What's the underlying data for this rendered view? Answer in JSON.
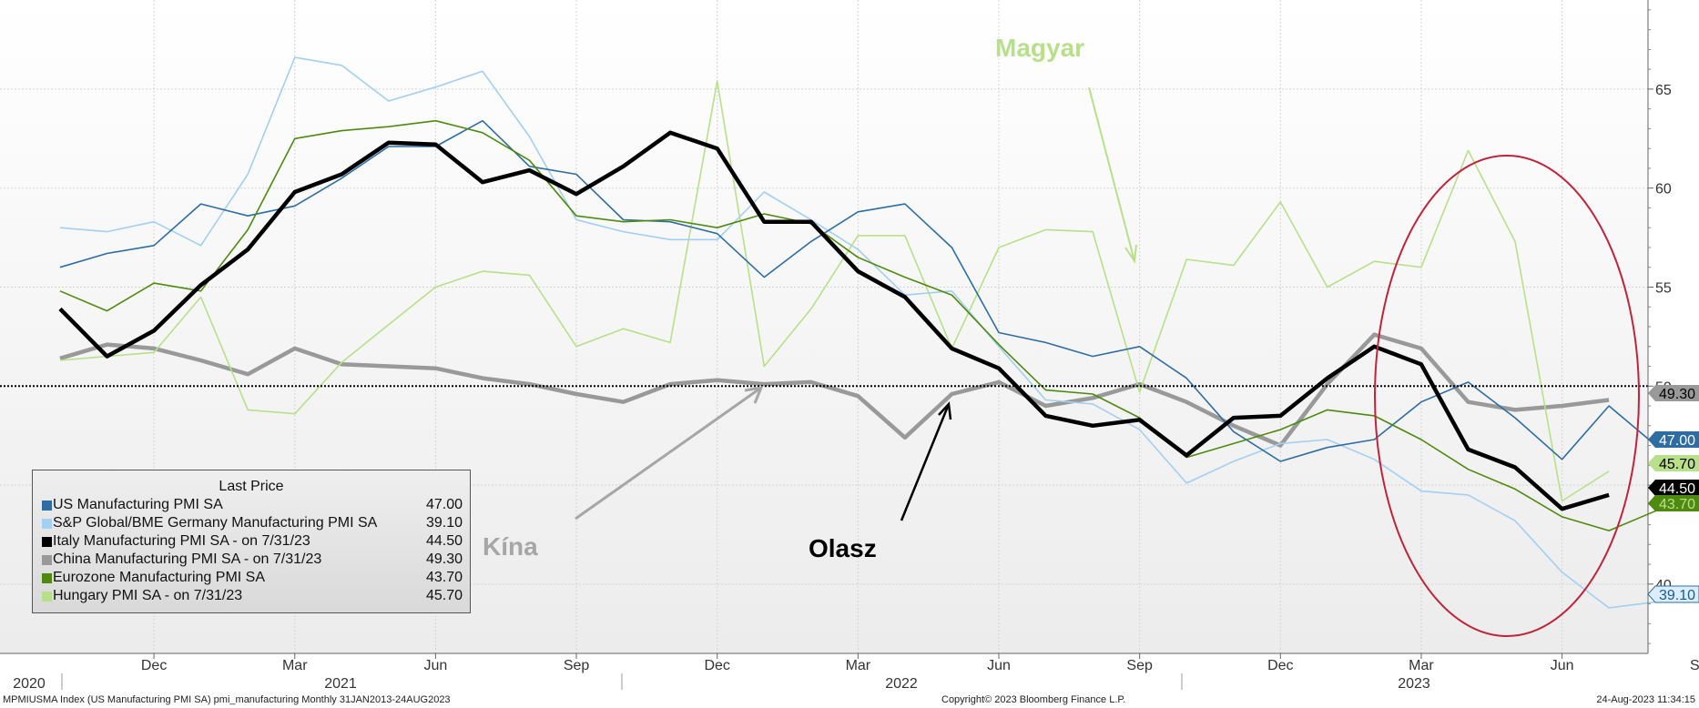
{
  "chart_data": {
    "type": "line",
    "x": [
      "2020-10",
      "2020-11",
      "2020-12",
      "2021-01",
      "2021-02",
      "2021-03",
      "2021-04",
      "2021-05",
      "2021-06",
      "2021-07",
      "2021-08",
      "2021-09",
      "2021-10",
      "2021-11",
      "2021-12",
      "2022-01",
      "2022-02",
      "2022-03",
      "2022-04",
      "2022-05",
      "2022-06",
      "2022-07",
      "2022-08",
      "2022-09",
      "2022-10",
      "2022-11",
      "2022-12",
      "2023-01",
      "2023-02",
      "2023-03",
      "2023-04",
      "2023-05",
      "2023-06",
      "2023-07",
      "2023-08"
    ],
    "series": [
      {
        "name": "US Manufacturing PMI SA",
        "color": "#2e6da4",
        "last_value": "47.00",
        "values": [
          56.0,
          56.7,
          57.1,
          59.2,
          58.6,
          59.1,
          60.5,
          62.1,
          62.1,
          63.4,
          61.1,
          60.7,
          58.4,
          58.3,
          57.7,
          55.5,
          57.3,
          58.8,
          59.2,
          57.0,
          52.7,
          52.2,
          51.5,
          52.0,
          50.4,
          47.7,
          46.2,
          46.9,
          47.3,
          49.2,
          50.2,
          48.4,
          46.3,
          49.0,
          47.0
        ]
      },
      {
        "name": "S&P Global/BME Germany Manufacturing PMI SA",
        "color": "#a3cff2",
        "last_value": "39.10",
        "values": [
          58.0,
          57.8,
          58.3,
          57.1,
          60.7,
          66.6,
          66.2,
          64.4,
          65.1,
          65.9,
          62.6,
          58.4,
          57.8,
          57.4,
          57.4,
          59.8,
          58.4,
          56.9,
          54.6,
          54.8,
          52.0,
          49.3,
          49.1,
          47.8,
          45.1,
          46.2,
          47.1,
          47.3,
          46.3,
          44.7,
          44.5,
          43.2,
          40.6,
          38.8,
          39.1
        ]
      },
      {
        "name": "Italy Manufacturing PMI SA -  on 7/31/23",
        "color": "#000000",
        "last_value": "44.50",
        "values": [
          53.9,
          51.5,
          52.8,
          55.1,
          56.9,
          59.8,
          60.7,
          62.3,
          62.2,
          60.3,
          60.9,
          59.7,
          61.1,
          62.8,
          62.0,
          58.3,
          58.3,
          55.8,
          54.5,
          51.9,
          50.9,
          48.5,
          48.0,
          48.3,
          46.5,
          48.4,
          48.5,
          50.4,
          52.0,
          51.1,
          46.8,
          45.9,
          43.8,
          44.5,
          null
        ]
      },
      {
        "name": "China Manufacturing PMI SA -  on 7/31/23",
        "color": "#999999",
        "last_value": "49.30",
        "values": [
          51.4,
          52.1,
          51.9,
          51.3,
          50.6,
          51.9,
          51.1,
          51.0,
          50.9,
          50.4,
          50.1,
          49.6,
          49.2,
          50.1,
          50.3,
          50.1,
          50.2,
          49.5,
          47.4,
          49.6,
          50.2,
          49.0,
          49.4,
          50.1,
          49.2,
          48.0,
          47.0,
          50.1,
          52.6,
          51.9,
          49.2,
          48.8,
          49.0,
          49.3,
          null
        ]
      },
      {
        "name": "Eurozone Manufacturing PMI SA",
        "color": "#4f8a10",
        "last_value": "43.70",
        "values": [
          54.8,
          53.8,
          55.2,
          54.8,
          57.9,
          62.5,
          62.9,
          63.1,
          63.4,
          62.8,
          61.4,
          58.6,
          58.3,
          58.4,
          58.0,
          58.7,
          58.2,
          56.5,
          55.5,
          54.6,
          52.1,
          49.8,
          49.6,
          48.4,
          46.4,
          47.1,
          47.8,
          48.8,
          48.5,
          47.3,
          45.8,
          44.8,
          43.4,
          42.7,
          43.7
        ]
      },
      {
        "name": "Hungary PMI SA -  on 7/31/23",
        "color": "#b8e08a",
        "last_value": "45.70",
        "values": [
          51.3,
          51.5,
          51.7,
          54.5,
          48.8,
          48.6,
          51.2,
          53.1,
          55.0,
          55.8,
          55.6,
          52.0,
          52.9,
          52.2,
          65.4,
          51.0,
          53.9,
          57.6,
          57.6,
          51.9,
          57.0,
          57.9,
          57.8,
          49.7,
          56.4,
          56.1,
          59.3,
          55.0,
          56.3,
          56.0,
          61.9,
          57.3,
          44.2,
          45.7,
          null
        ]
      }
    ],
    "ylim": [
      36.5,
      69.5
    ],
    "yticks": [
      40,
      45,
      50,
      55,
      60,
      65
    ],
    "y_label_ticks": [
      "40",
      "45",
      "50",
      "55",
      "60",
      "65"
    ],
    "x_tick_labels": [
      "Dec",
      "Mar",
      "Jun",
      "Sep",
      "Dec",
      "Mar",
      "Jun",
      "Sep",
      "Dec",
      "Mar",
      "Jun",
      "Sep"
    ],
    "year_labels": [
      "2020",
      "2021",
      "2022",
      "2023"
    ],
    "reference_line": 50,
    "reference_label": "50",
    "legend_title": "Last Price",
    "legend_placement": "bottom-left",
    "grid": true,
    "annotations": {
      "magyar": "Magyar",
      "kina": "Kína",
      "olasz": "Olasz"
    }
  },
  "footer": {
    "left": "MPMIUSMA Index (US Manufacturing PMI SA) pmi_manufacturing  Monthly 31JAN2013-24AUG2023",
    "center": "Copyright© 2023 Bloomberg Finance L.P.",
    "right": "24-Aug-2023 11:34:15"
  }
}
